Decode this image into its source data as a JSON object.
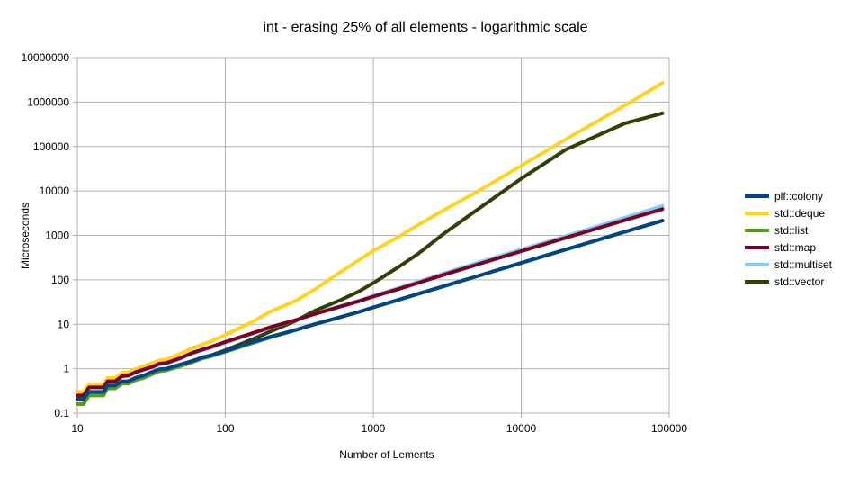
{
  "chart_data": {
    "type": "line",
    "title": "int - erasing 25% of all elements - logarithmic scale",
    "xlabel": "Number of Lements",
    "ylabel": "Microseconds",
    "x_scale": "log",
    "y_scale": "log",
    "xlim": [
      10,
      100000
    ],
    "ylim": [
      0.1,
      10000000
    ],
    "x_ticks": [
      "10",
      "100",
      "1000",
      "10000",
      "100000"
    ],
    "y_ticks": [
      "0.1",
      "1",
      "10",
      "100",
      "1000",
      "10000",
      "100000",
      "1000000",
      "10000000"
    ],
    "grid": true,
    "legend_position": "right",
    "x": [
      10,
      11,
      12,
      15,
      16,
      18,
      20,
      22,
      25,
      28,
      32,
      36,
      40,
      50,
      60,
      70,
      80,
      100,
      150,
      200,
      300,
      400,
      600,
      800,
      1000,
      1500,
      2000,
      3000,
      5000,
      10000,
      20000,
      50000,
      90000
    ],
    "series": [
      {
        "name": "plf::colony",
        "color": "#004586",
        "values": [
          0.21,
          0.21,
          0.3,
          0.3,
          0.42,
          0.42,
          0.52,
          0.52,
          0.63,
          0.7,
          0.85,
          0.98,
          1.0,
          1.25,
          1.5,
          1.8,
          2.0,
          2.5,
          3.9,
          5.2,
          7.5,
          10,
          14.5,
          19,
          24,
          36,
          48,
          72,
          120,
          240,
          480,
          1200,
          2150
        ]
      },
      {
        "name": "std::deque",
        "color": "#ffd320",
        "values": [
          0.3,
          0.3,
          0.45,
          0.45,
          0.62,
          0.62,
          0.8,
          0.82,
          1.0,
          1.15,
          1.35,
          1.55,
          1.6,
          2.2,
          2.9,
          3.5,
          4.1,
          5.8,
          11,
          19,
          34,
          60,
          150,
          280,
          450,
          950,
          1700,
          3700,
          9500,
          37000,
          145000,
          840000,
          2700000
        ]
      },
      {
        "name": "std::list",
        "color": "#579d1c",
        "values": [
          0.16,
          0.16,
          0.25,
          0.25,
          0.36,
          0.36,
          0.46,
          0.46,
          0.56,
          0.62,
          0.75,
          0.88,
          0.92,
          1.15,
          1.4,
          1.7,
          1.9,
          2.4,
          3.7,
          5.0,
          7.4,
          10,
          14.5,
          19,
          24,
          36,
          48,
          72,
          120,
          240,
          480,
          1200,
          2150
        ]
      },
      {
        "name": "std::map",
        "color": "#7e0021",
        "values": [
          0.25,
          0.25,
          0.38,
          0.38,
          0.52,
          0.52,
          0.68,
          0.7,
          0.85,
          0.96,
          1.1,
          1.3,
          1.35,
          1.75,
          2.3,
          2.7,
          3.1,
          4.0,
          6.2,
          8.5,
          12.5,
          17,
          25,
          33,
          42,
          63,
          85,
          130,
          220,
          440,
          880,
          2200,
          3900
        ]
      },
      {
        "name": "std::multiset",
        "color": "#83caff",
        "values": [
          0.25,
          0.25,
          0.38,
          0.38,
          0.52,
          0.52,
          0.66,
          0.68,
          0.83,
          0.93,
          1.07,
          1.25,
          1.3,
          1.7,
          2.2,
          2.6,
          3.0,
          3.8,
          6.0,
          8.3,
          12.5,
          17,
          26,
          34,
          44,
          66,
          90,
          140,
          240,
          480,
          960,
          2500,
          4600
        ]
      },
      {
        "name": "std::vector",
        "color": "#314004",
        "values": [
          0.16,
          0.16,
          0.26,
          0.26,
          0.37,
          0.37,
          0.48,
          0.48,
          0.58,
          0.65,
          0.8,
          0.9,
          0.94,
          1.2,
          1.45,
          1.75,
          2.0,
          2.6,
          4.5,
          6.8,
          12,
          20,
          35,
          55,
          85,
          200,
          380,
          1100,
          3700,
          19000,
          85000,
          330000,
          560000
        ]
      }
    ]
  }
}
